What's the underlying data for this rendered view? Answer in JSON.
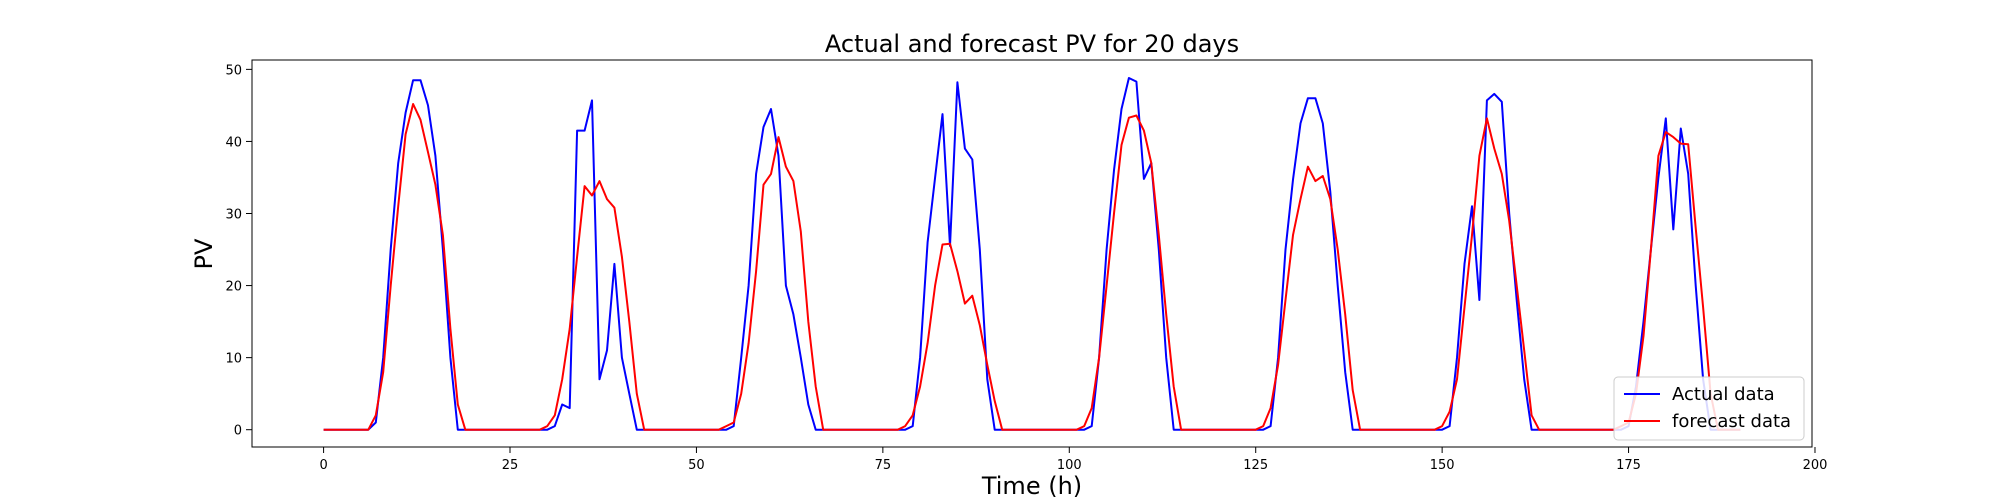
{
  "chart_data": {
    "type": "line",
    "title": "Actual and forecast PV for 20 days",
    "xlabel": "Time (h)",
    "ylabel": "PV",
    "xlim": [
      -9.6,
      199.6
    ],
    "ylim": [
      -2.4,
      51.3
    ],
    "xticks": [
      0,
      25,
      50,
      75,
      100,
      125,
      150,
      175,
      200
    ],
    "yticks": [
      0,
      10,
      20,
      30,
      40,
      50
    ],
    "grid": false,
    "legend": "lower-right",
    "series": [
      {
        "name": "Actual data",
        "color": "#0000ff",
        "points": [
          [
            0,
            0
          ],
          [
            6,
            0
          ],
          [
            7,
            1
          ],
          [
            8,
            10
          ],
          [
            9,
            25
          ],
          [
            10,
            37
          ],
          [
            11,
            44
          ],
          [
            12,
            48.5
          ],
          [
            13,
            48.5
          ],
          [
            14,
            45
          ],
          [
            15,
            38
          ],
          [
            16,
            25
          ],
          [
            17,
            10
          ],
          [
            18,
            0
          ],
          [
            30,
            0
          ],
          [
            31,
            0.5
          ],
          [
            32,
            3.5
          ],
          [
            33,
            3
          ],
          [
            34,
            41.5
          ],
          [
            35,
            41.5
          ],
          [
            36,
            45.7
          ],
          [
            37,
            7
          ],
          [
            38,
            11
          ],
          [
            39,
            23
          ],
          [
            40,
            10
          ],
          [
            41,
            5
          ],
          [
            42,
            0
          ],
          [
            54,
            0
          ],
          [
            55,
            0.5
          ],
          [
            56,
            10
          ],
          [
            57,
            20
          ],
          [
            58,
            35.5
          ],
          [
            59,
            42
          ],
          [
            60,
            44.5
          ],
          [
            61,
            38
          ],
          [
            62,
            20
          ],
          [
            63,
            16
          ],
          [
            64,
            10
          ],
          [
            65,
            3.5
          ],
          [
            66,
            0
          ],
          [
            78,
            0
          ],
          [
            79,
            0.5
          ],
          [
            80,
            10
          ],
          [
            81,
            26
          ],
          [
            82,
            35
          ],
          [
            83,
            43.8
          ],
          [
            84,
            25.5
          ],
          [
            85,
            48.2
          ],
          [
            86,
            39
          ],
          [
            87,
            37.5
          ],
          [
            88,
            25
          ],
          [
            89,
            7
          ],
          [
            90,
            0
          ],
          [
            102,
            0
          ],
          [
            103,
            0.5
          ],
          [
            104,
            10
          ],
          [
            105,
            25
          ],
          [
            106,
            36
          ],
          [
            107,
            44.5
          ],
          [
            108,
            48.8
          ],
          [
            109,
            48.3
          ],
          [
            110,
            34.8
          ],
          [
            111,
            37
          ],
          [
            112,
            25
          ],
          [
            113,
            10
          ],
          [
            114,
            0
          ],
          [
            126,
            0
          ],
          [
            127,
            0.5
          ],
          [
            128,
            10
          ],
          [
            129,
            25
          ],
          [
            130,
            34.7
          ],
          [
            131,
            42.5
          ],
          [
            132,
            46
          ],
          [
            133,
            46
          ],
          [
            134,
            42.5
          ],
          [
            135,
            33
          ],
          [
            136,
            20
          ],
          [
            137,
            8
          ],
          [
            138,
            0
          ],
          [
            150,
            0
          ],
          [
            151,
            0.5
          ],
          [
            152,
            10
          ],
          [
            153,
            23
          ],
          [
            154,
            31
          ],
          [
            155,
            18
          ],
          [
            156,
            45.7
          ],
          [
            157,
            46.6
          ],
          [
            158,
            45.5
          ],
          [
            159,
            30
          ],
          [
            160,
            18
          ],
          [
            161,
            7
          ],
          [
            162,
            0
          ],
          [
            174,
            0
          ],
          [
            175,
            0.5
          ],
          [
            176,
            6
          ],
          [
            177,
            15
          ],
          [
            178,
            25
          ],
          [
            179,
            35
          ],
          [
            180,
            43.2
          ],
          [
            181,
            27.8
          ],
          [
            182,
            41.8
          ],
          [
            183,
            35.5
          ],
          [
            184,
            20
          ],
          [
            185,
            7
          ],
          [
            186,
            0
          ],
          [
            190,
            0
          ]
        ]
      },
      {
        "name": "forecast data",
        "color": "#ff0000",
        "points": [
          [
            0,
            0
          ],
          [
            6,
            0
          ],
          [
            7,
            2
          ],
          [
            8,
            8
          ],
          [
            9,
            20
          ],
          [
            10,
            31
          ],
          [
            11,
            41
          ],
          [
            12,
            45.2
          ],
          [
            13,
            43
          ],
          [
            14,
            38.5
          ],
          [
            15,
            34
          ],
          [
            16,
            27
          ],
          [
            17,
            14
          ],
          [
            18,
            3.5
          ],
          [
            19,
            0
          ],
          [
            29,
            0
          ],
          [
            30,
            0.5
          ],
          [
            31,
            2
          ],
          [
            32,
            7
          ],
          [
            33,
            14
          ],
          [
            34,
            24
          ],
          [
            35,
            33.8
          ],
          [
            36,
            32.5
          ],
          [
            37,
            34.5
          ],
          [
            38,
            32
          ],
          [
            39,
            30.8
          ],
          [
            40,
            24
          ],
          [
            41,
            15
          ],
          [
            42,
            5
          ],
          [
            43,
            0
          ],
          [
            53,
            0
          ],
          [
            54,
            0.5
          ],
          [
            55,
            1
          ],
          [
            56,
            5
          ],
          [
            57,
            12
          ],
          [
            58,
            22
          ],
          [
            59,
            34
          ],
          [
            60,
            35.5
          ],
          [
            61,
            40.6
          ],
          [
            62,
            36.5
          ],
          [
            63,
            34.5
          ],
          [
            64,
            27.5
          ],
          [
            65,
            15
          ],
          [
            66,
            6
          ],
          [
            67,
            0
          ],
          [
            77,
            0
          ],
          [
            78,
            0.5
          ],
          [
            79,
            2
          ],
          [
            80,
            6
          ],
          [
            81,
            12
          ],
          [
            82,
            20
          ],
          [
            83,
            25.7
          ],
          [
            84,
            25.8
          ],
          [
            85,
            22
          ],
          [
            86,
            17.5
          ],
          [
            87,
            18.6
          ],
          [
            88,
            14.5
          ],
          [
            89,
            9
          ],
          [
            90,
            4
          ],
          [
            91,
            0
          ],
          [
            101,
            0
          ],
          [
            102,
            0.5
          ],
          [
            103,
            3
          ],
          [
            104,
            10
          ],
          [
            105,
            20
          ],
          [
            106,
            30
          ],
          [
            107,
            39.5
          ],
          [
            108,
            43.3
          ],
          [
            109,
            43.6
          ],
          [
            110,
            41.5
          ],
          [
            111,
            37
          ],
          [
            112,
            27
          ],
          [
            113,
            16
          ],
          [
            114,
            6
          ],
          [
            115,
            0
          ],
          [
            125,
            0
          ],
          [
            126,
            0.5
          ],
          [
            127,
            3
          ],
          [
            128,
            9
          ],
          [
            129,
            18
          ],
          [
            130,
            27
          ],
          [
            131,
            32
          ],
          [
            132,
            36.5
          ],
          [
            133,
            34.5
          ],
          [
            134,
            35.2
          ],
          [
            135,
            32
          ],
          [
            136,
            25
          ],
          [
            137,
            16
          ],
          [
            138,
            5.5
          ],
          [
            139,
            0
          ],
          [
            149,
            0
          ],
          [
            150,
            0.5
          ],
          [
            151,
            2.5
          ],
          [
            152,
            7
          ],
          [
            153,
            17
          ],
          [
            154,
            27
          ],
          [
            155,
            38
          ],
          [
            156,
            43.2
          ],
          [
            157,
            39
          ],
          [
            158,
            35.5
          ],
          [
            159,
            29
          ],
          [
            160,
            20
          ],
          [
            161,
            11
          ],
          [
            162,
            2
          ],
          [
            163,
            0
          ],
          [
            173,
            0
          ],
          [
            174,
            0.5
          ],
          [
            175,
            1
          ],
          [
            176,
            5
          ],
          [
            177,
            13
          ],
          [
            178,
            25
          ],
          [
            179,
            38
          ],
          [
            180,
            41.3
          ],
          [
            181,
            40.6
          ],
          [
            182,
            39.7
          ],
          [
            183,
            39.6
          ],
          [
            184,
            28
          ],
          [
            185,
            17
          ],
          [
            186,
            5
          ],
          [
            187,
            0
          ],
          [
            190,
            0
          ]
        ]
      }
    ]
  }
}
